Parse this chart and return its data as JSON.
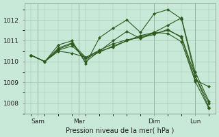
{
  "bg_color": "#c8e8d8",
  "grid_color": "#a0c8b0",
  "line_color": "#2d5a1e",
  "xlabel": "Pression niveau de la mer( hPa )",
  "ylim": [
    1007.5,
    1012.8
  ],
  "xlim": [
    -0.5,
    13.5
  ],
  "yticks": [
    1008,
    1009,
    1010,
    1011,
    1012
  ],
  "xtick_positions": [
    0.5,
    3.5,
    9.0,
    12.0
  ],
  "xtick_labels": [
    "Sam",
    "Mar",
    "Dim",
    "Lun"
  ],
  "vline_positions": [
    0.5,
    3.5,
    9.0,
    12.0
  ],
  "series": [
    {
      "x": [
        0,
        1,
        2,
        3,
        4,
        5,
        6,
        7,
        8,
        9,
        10,
        11,
        12,
        13
      ],
      "y": [
        1010.3,
        1010.0,
        1010.5,
        1010.4,
        1010.2,
        1010.5,
        1010.7,
        1011.0,
        1011.2,
        1011.35,
        1011.5,
        1011.2,
        1009.3,
        1008.0
      ]
    },
    {
      "x": [
        0,
        1,
        2,
        3,
        4,
        5,
        6,
        7,
        8,
        9,
        10,
        11,
        12,
        13
      ],
      "y": [
        1010.3,
        1010.0,
        1010.8,
        1011.0,
        1009.9,
        1011.15,
        1011.6,
        1012.0,
        1011.4,
        1012.3,
        1012.5,
        1012.05,
        1009.3,
        1007.8
      ]
    },
    {
      "x": [
        0,
        1,
        2,
        3,
        4,
        5,
        6,
        7,
        8,
        9,
        10,
        11,
        12,
        13
      ],
      "y": [
        1010.3,
        1010.0,
        1010.6,
        1010.85,
        1010.2,
        1010.55,
        1010.85,
        1011.05,
        1011.15,
        1011.3,
        1011.55,
        1011.15,
        1009.1,
        1008.8
      ]
    },
    {
      "x": [
        0,
        1,
        2,
        3,
        4,
        5,
        6,
        7,
        8,
        9,
        10,
        11,
        12,
        13
      ],
      "y": [
        1010.3,
        1010.0,
        1010.65,
        1010.9,
        1010.0,
        1010.5,
        1011.0,
        1011.45,
        1011.1,
        1011.4,
        1011.35,
        1010.95,
        1009.05,
        1007.75
      ]
    },
    {
      "x": [
        0,
        1,
        2,
        3,
        4,
        5,
        6,
        7,
        8,
        9,
        10,
        11,
        12,
        13
      ],
      "y": [
        1010.3,
        1010.0,
        1010.55,
        1010.75,
        1010.15,
        1010.45,
        1010.75,
        1011.0,
        1011.25,
        1011.4,
        1011.75,
        1012.1,
        1009.5,
        1008.1
      ]
    }
  ]
}
